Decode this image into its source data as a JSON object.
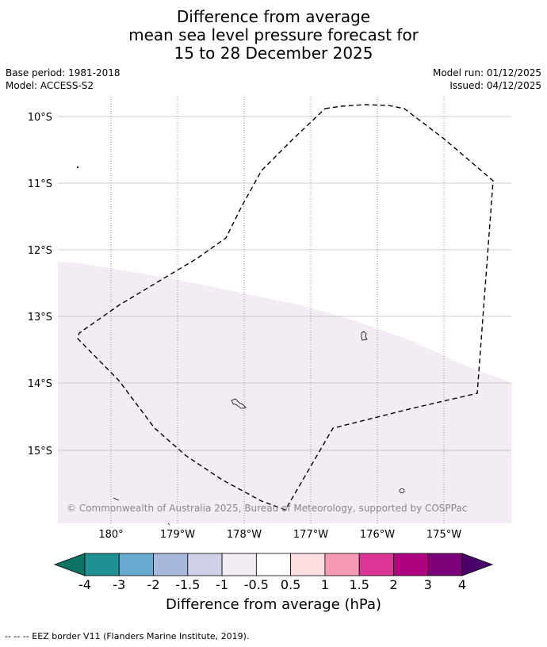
{
  "header": {
    "title_line1": "Difference from average",
    "title_line2": "mean sea level pressure forecast for",
    "title_line3": "15 to 28 December 2025",
    "base_period": "Base period: 1981-2018",
    "model": "Model: ACCESS-S2",
    "model_run": "Model run: 01/12/2025",
    "issued": "Issued: 04/12/2025"
  },
  "map": {
    "lat_labels": [
      "10°S",
      "11°S",
      "12°S",
      "13°S",
      "14°S",
      "15°S"
    ],
    "lon_labels": [
      "180°",
      "179°W",
      "178°W",
      "177°W",
      "176°W",
      "175°W"
    ],
    "copyright": "© Commonwealth of Australia 2025, Bureau of Meteorology, supported by COSPPac",
    "anomaly_fill_color": "#f3ecf4",
    "eez_label": "--  --  -- EEZ border V11 (Flanders Marine Institute, 2019)."
  },
  "colorbar": {
    "title": "Difference from average (hPa)",
    "colors": [
      "#0e7263",
      "#1e9096",
      "#68a9d0",
      "#a8b8dd",
      "#d0d0e6",
      "#f3ecf4",
      "#ffffff",
      "#ffdee0",
      "#f79ab5",
      "#dc3597",
      "#ae017e",
      "#7a0177",
      "#49006a"
    ],
    "ticks": [
      "-4",
      "-3",
      "-2",
      "-1.5",
      "-1",
      "-0.5",
      "0.5",
      "1",
      "1.5",
      "2",
      "3",
      "4"
    ]
  }
}
